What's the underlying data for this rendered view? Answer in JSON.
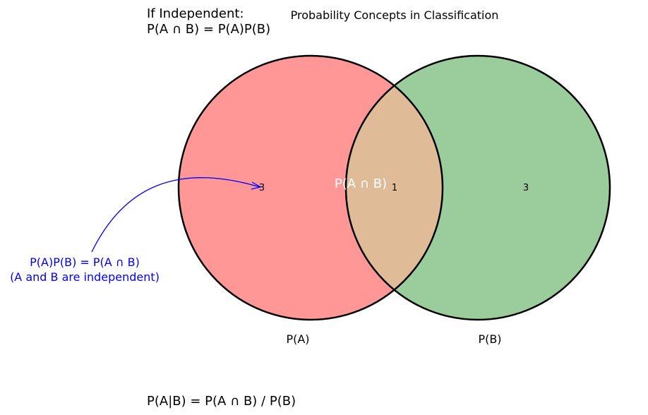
{
  "title": "Probability Concepts in Classification",
  "independence_note": {
    "line1": "If Independent:",
    "line2": "P(A ∩ B) = P(A)P(B)"
  },
  "venn": {
    "set_a": {
      "label": "P(A)",
      "region_count": "3",
      "color": "#ff9797"
    },
    "set_b": {
      "label": "P(B)",
      "region_count": "3",
      "color": "#9bcc9b"
    },
    "intersection": {
      "label": "P(A ∩ B)",
      "region_count": "1",
      "color": "#dfbb98"
    },
    "outline_color": "#000000"
  },
  "annotation": {
    "line1": "P(A)P(B) = P(A ∩ B)",
    "line2": "(A and B are independent)",
    "color": "#0000ff"
  },
  "formula": "P(A|B) = P(A ∩ B) / P(B)"
}
